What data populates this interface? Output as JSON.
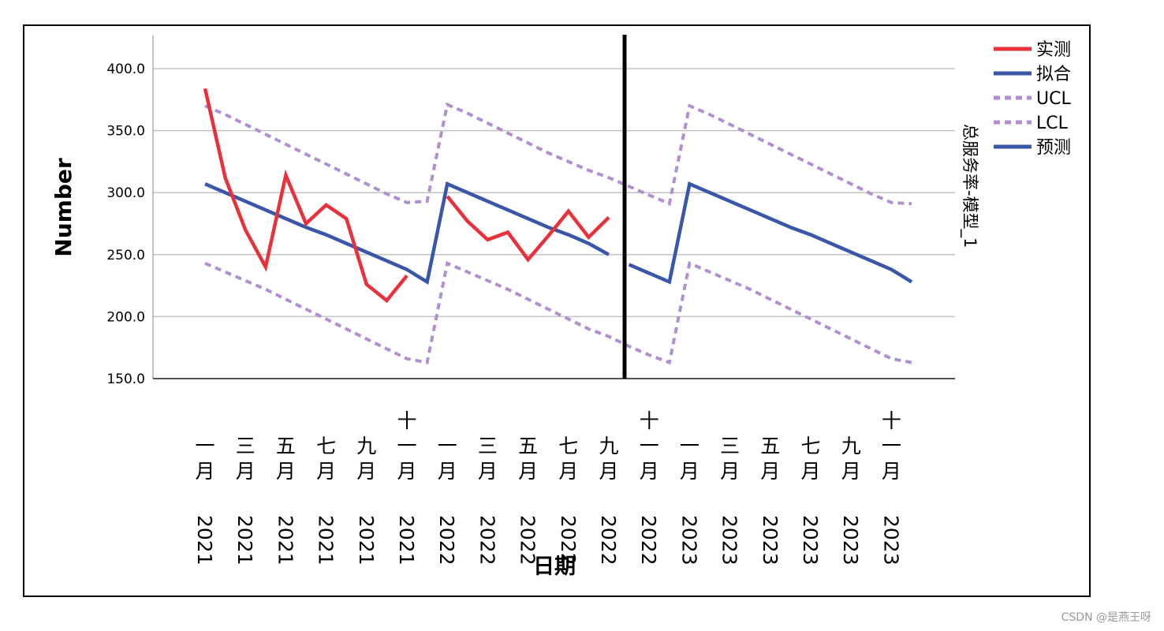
{
  "chart_data": {
    "type": "line",
    "xlabel": "日期",
    "ylabel": "Number",
    "side_label": "总服务率-模型_1",
    "ylim": [
      150,
      420
    ],
    "yticks": [
      "400.0",
      "350.0",
      "300.0",
      "250.0",
      "200.0",
      "150.0"
    ],
    "ytick_values": [
      400,
      350,
      300,
      250,
      200,
      150
    ],
    "grid": true,
    "legend_position": "top-right",
    "divider_month": "十一月 2022",
    "x_tick_labels": [
      {
        "month": "一月",
        "year": "2021"
      },
      {
        "month": "三月",
        "year": "2021"
      },
      {
        "month": "五月",
        "year": "2021"
      },
      {
        "month": "七月",
        "year": "2021"
      },
      {
        "month": "九月",
        "year": "2021"
      },
      {
        "month": "十一月",
        "year": "2021"
      },
      {
        "month": "一月",
        "year": "2022"
      },
      {
        "month": "三月",
        "year": "2022"
      },
      {
        "month": "五月",
        "year": "2022"
      },
      {
        "month": "七月",
        "year": "2022"
      },
      {
        "month": "九月",
        "year": "2022"
      },
      {
        "month": "十一月",
        "year": "2022"
      },
      {
        "month": "一月",
        "year": "2023"
      },
      {
        "month": "三月",
        "year": "2023"
      },
      {
        "month": "五月",
        "year": "2023"
      },
      {
        "month": "七月",
        "year": "2023"
      },
      {
        "month": "九月",
        "year": "2023"
      },
      {
        "month": "十一月",
        "year": "2023"
      }
    ],
    "months": [
      "2021-01",
      "2021-02",
      "2021-03",
      "2021-04",
      "2021-05",
      "2021-06",
      "2021-07",
      "2021-08",
      "2021-09",
      "2021-10",
      "2021-11",
      "2021-12",
      "2022-01",
      "2022-02",
      "2022-03",
      "2022-04",
      "2022-05",
      "2022-06",
      "2022-07",
      "2022-08",
      "2022-09",
      "2022-10",
      "2022-11",
      "2022-12",
      "2023-01",
      "2023-02",
      "2023-03",
      "2023-04",
      "2023-05",
      "2023-06",
      "2023-07",
      "2023-08",
      "2023-09",
      "2023-10",
      "2023-11",
      "2023-12"
    ],
    "series": [
      {
        "name": "实测",
        "color": "#e8313b",
        "style": "solid",
        "values": [
          384,
          312,
          270,
          240,
          314,
          275,
          290,
          279,
          226,
          213,
          233,
          null,
          297,
          277,
          262,
          268,
          246,
          265,
          285,
          264,
          280,
          null,
          null,
          null,
          null,
          null,
          null,
          null,
          null,
          null,
          null,
          null,
          null,
          null,
          null,
          null
        ]
      },
      {
        "name": "拟合",
        "color": "#3a56a8",
        "style": "solid",
        "values": [
          307,
          300,
          293,
          286,
          279,
          272,
          266,
          259,
          252,
          245,
          238,
          228,
          307,
          300,
          293,
          286,
          279,
          272,
          266,
          259,
          250,
          null,
          null,
          null,
          null,
          null,
          null,
          null,
          null,
          null,
          null,
          null,
          null,
          null,
          null,
          null
        ]
      },
      {
        "name": "UCL",
        "color": "#b18fd0",
        "style": "dashed",
        "values": [
          370,
          363,
          355,
          347,
          339,
          331,
          323,
          315,
          307,
          299,
          292,
          293,
          371,
          364,
          356,
          348,
          340,
          332,
          325,
          318,
          312,
          305,
          298,
          291,
          370,
          363,
          355,
          347,
          339,
          331,
          323,
          315,
          307,
          299,
          292,
          291
        ]
      },
      {
        "name": "LCL",
        "color": "#b18fd0",
        "style": "dashed",
        "values": [
          243,
          236,
          229,
          222,
          214,
          206,
          198,
          190,
          182,
          174,
          166,
          163,
          243,
          236,
          229,
          222,
          214,
          206,
          198,
          190,
          184,
          176,
          169,
          163,
          243,
          236,
          229,
          222,
          214,
          206,
          198,
          190,
          182,
          174,
          166,
          163
        ]
      },
      {
        "name": "预测",
        "color": "#3a56a8",
        "style": "solid",
        "values": [
          null,
          null,
          null,
          null,
          null,
          null,
          null,
          null,
          null,
          null,
          null,
          null,
          null,
          null,
          null,
          null,
          null,
          null,
          null,
          null,
          null,
          242,
          235,
          228,
          307,
          300,
          293,
          286,
          279,
          272,
          266,
          259,
          252,
          245,
          238,
          228
        ]
      }
    ]
  },
  "watermark": "CSDN @是燕王呀"
}
